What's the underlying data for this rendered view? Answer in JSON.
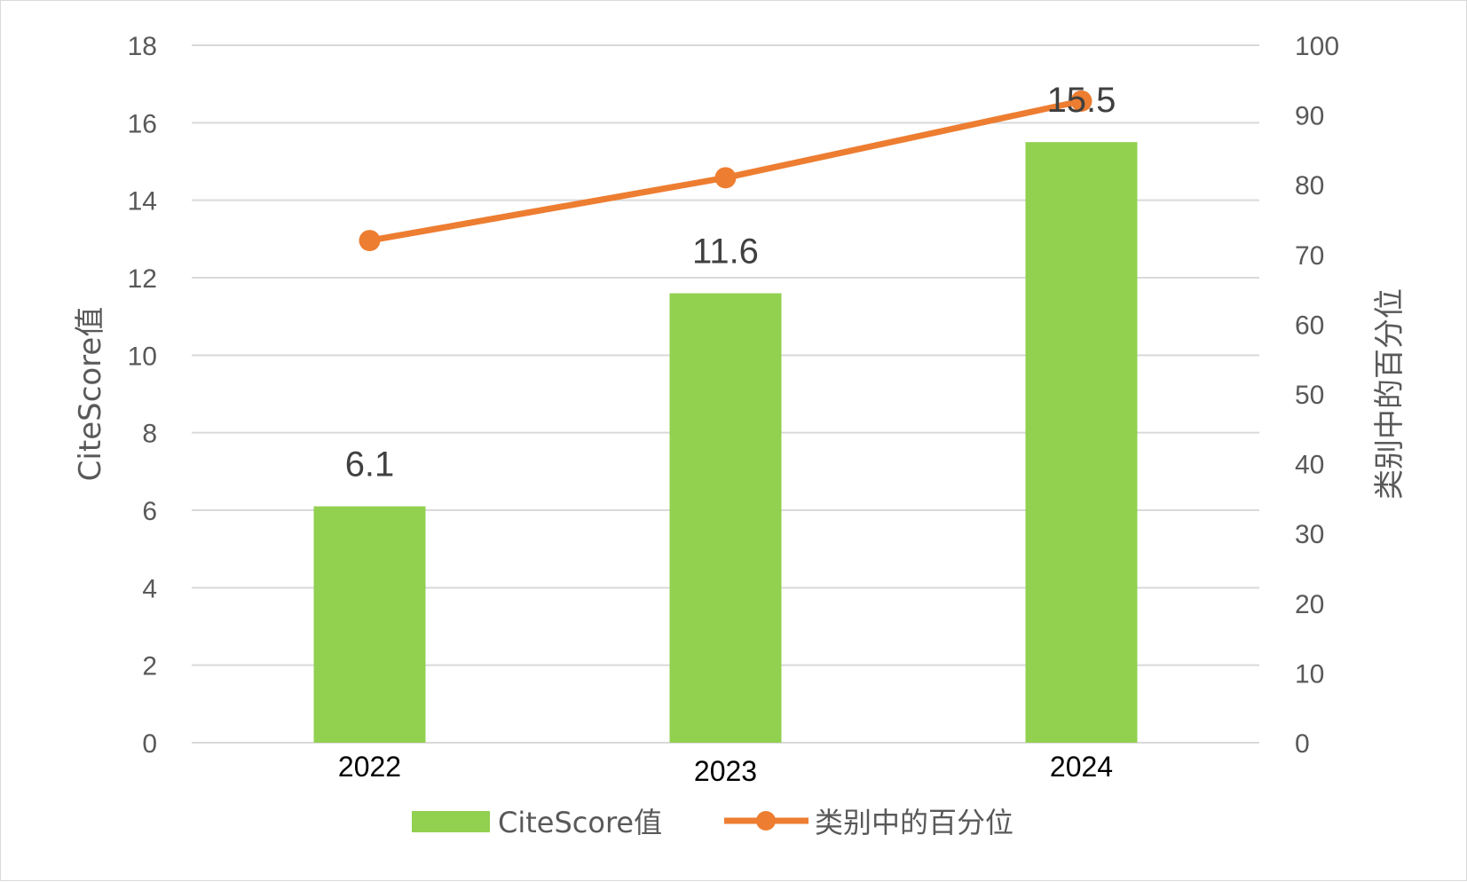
{
  "chart_data": {
    "type": "bar+line",
    "categories": [
      "2022",
      "2023",
      "2024"
    ],
    "series": [
      {
        "name": "CiteScore值",
        "type": "bar",
        "axis": "left",
        "values": [
          6.1,
          11.6,
          15.5
        ],
        "data_labels": [
          "6.1",
          "11.6",
          "15.5"
        ],
        "color": "#92d050"
      },
      {
        "name": "类别中的百分位",
        "type": "line",
        "axis": "right",
        "values": [
          72,
          81,
          92
        ],
        "color": "#ed7d31"
      }
    ],
    "ylabel": "CiteScore值",
    "y2label": "类别中的百分位",
    "ylim": [
      0,
      18
    ],
    "y_ticks": [
      "0",
      "2",
      "4",
      "6",
      "8",
      "10",
      "12",
      "14",
      "16",
      "18"
    ],
    "y2lim": [
      0,
      100
    ],
    "y2_ticks": [
      "0",
      "10",
      "20",
      "30",
      "40",
      "50",
      "60",
      "70",
      "80",
      "90",
      "100"
    ],
    "grid": true,
    "gridline_color": "#d9d9d9",
    "legend": "bottom",
    "legend_items": [
      "CiteScore值",
      "类别中的百分位"
    ]
  }
}
